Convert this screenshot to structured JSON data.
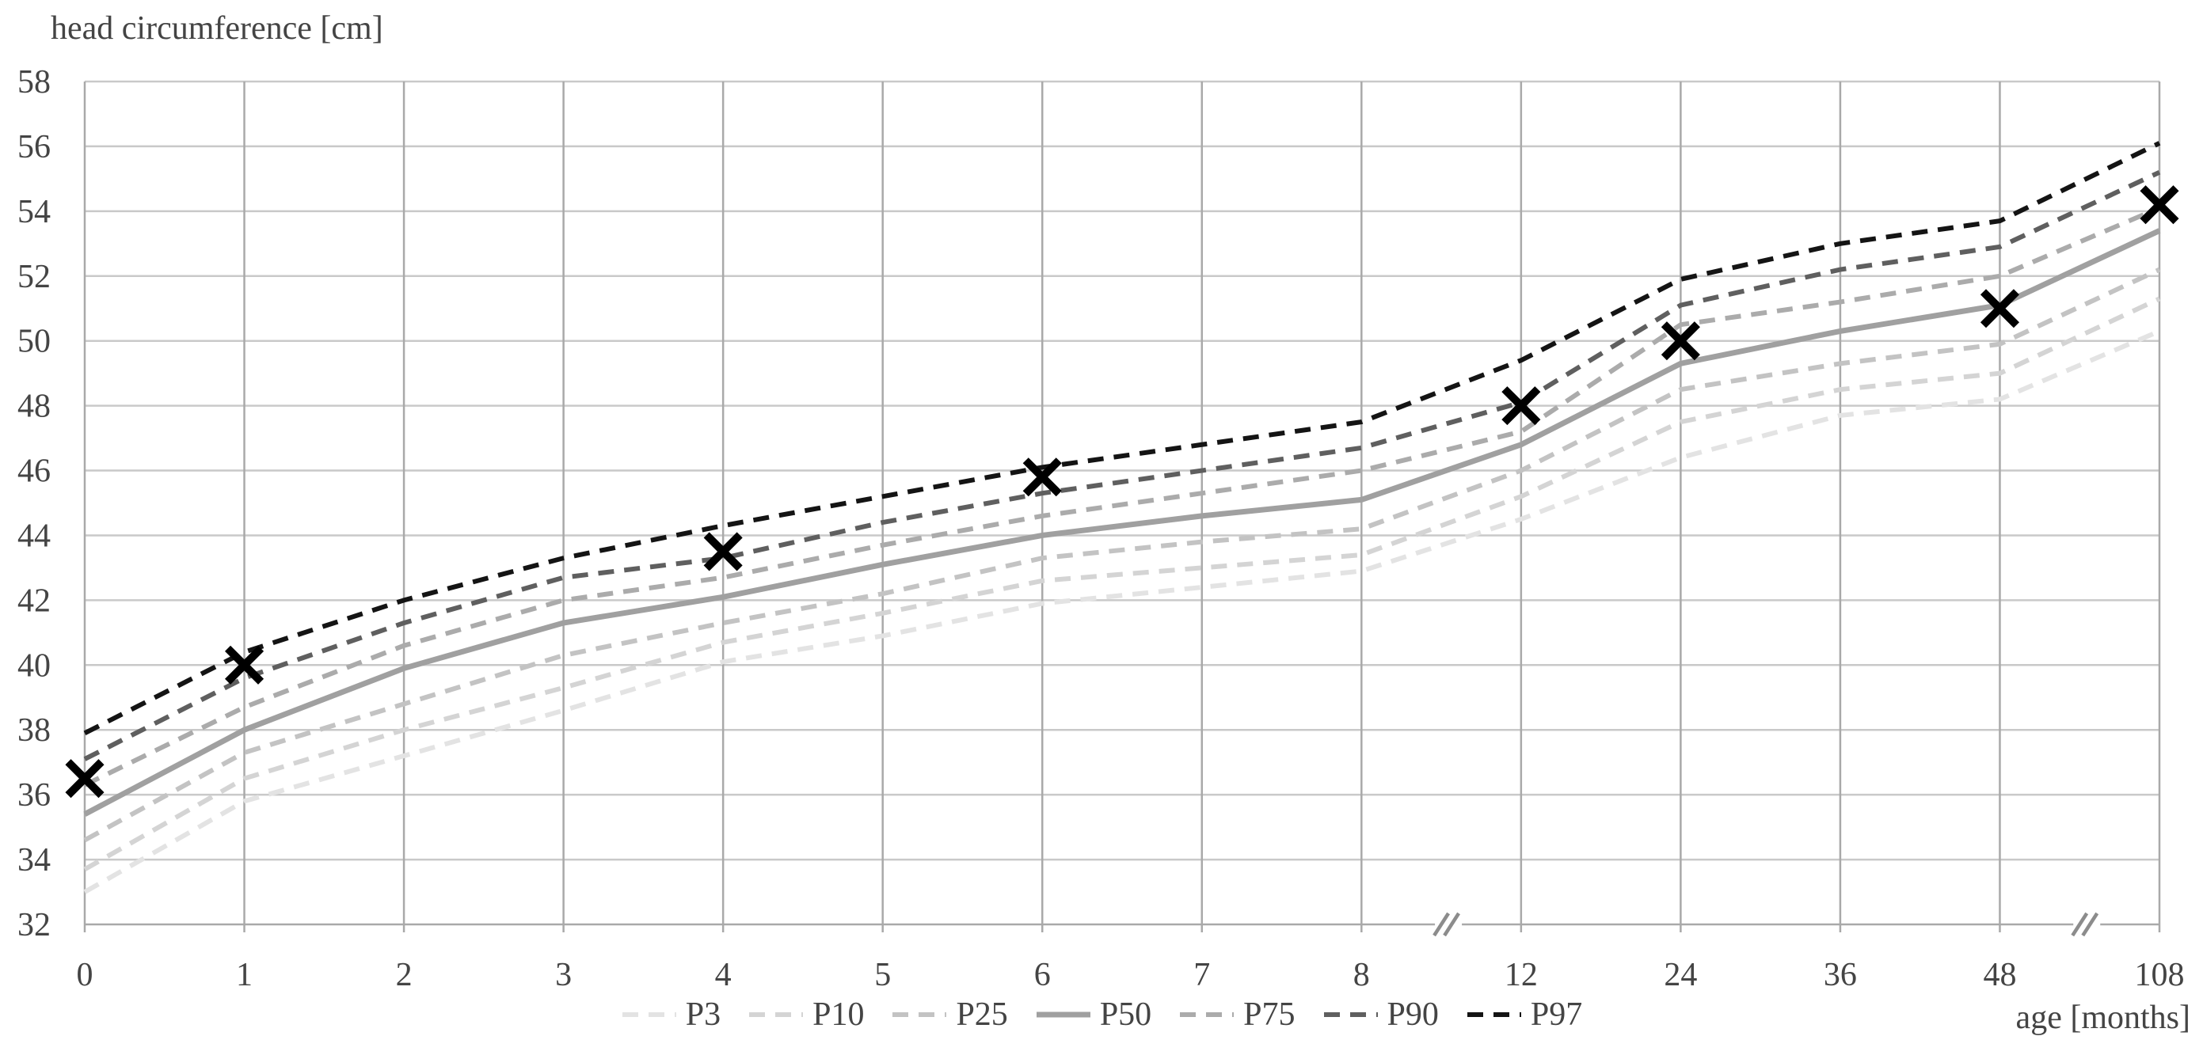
{
  "title": "head circumference [cm]",
  "x_axis_label": "age [months]",
  "colors": {
    "background": "#ffffff",
    "grid_horizontal": "#c9c9c9",
    "grid_vertical": "#a9a9a9",
    "axis": "#a9a9a9",
    "text": "#444444",
    "axis_break": "#8c8c8c",
    "patient_marker": "#000000"
  },
  "chart_data": {
    "type": "line",
    "title": "head circumference [cm]",
    "xlabel": "age [months]",
    "ylabel": "head circumference [cm]",
    "ylim": [
      32,
      58
    ],
    "y_ticks": [
      32,
      34,
      36,
      38,
      40,
      42,
      44,
      46,
      48,
      50,
      52,
      54,
      56,
      58
    ],
    "grid": true,
    "legend_position": "bottom-center",
    "x_axis_breaks_between_ticks": [
      [
        "8",
        "12"
      ],
      [
        "48",
        "108"
      ]
    ],
    "categories": [
      0,
      1,
      2,
      3,
      4,
      5,
      6,
      7,
      8,
      12,
      24,
      36,
      48,
      108
    ],
    "x_tick_labels": [
      "0",
      "1",
      "2",
      "3",
      "4",
      "5",
      "6",
      "7",
      "8",
      "12",
      "24",
      "36",
      "48",
      "108"
    ],
    "series": [
      {
        "name": "P3",
        "style": "dashed",
        "color": "#e3e3e3",
        "width": 6,
        "values": [
          33.0,
          35.8,
          37.2,
          38.6,
          40.1,
          40.9,
          41.9,
          42.4,
          42.9,
          44.5,
          46.4,
          47.7,
          48.2,
          50.3
        ]
      },
      {
        "name": "P10",
        "style": "dashed",
        "color": "#d4d4d4",
        "width": 6,
        "values": [
          33.7,
          36.5,
          38.0,
          39.3,
          40.7,
          41.6,
          42.6,
          43.0,
          43.4,
          45.2,
          47.5,
          48.5,
          49.0,
          51.3
        ]
      },
      {
        "name": "P25",
        "style": "dashed",
        "color": "#c3c3c3",
        "width": 6,
        "values": [
          34.6,
          37.3,
          38.8,
          40.3,
          41.3,
          42.2,
          43.3,
          43.8,
          44.2,
          46.0,
          48.5,
          49.3,
          49.9,
          52.2
        ]
      },
      {
        "name": "P50",
        "style": "solid",
        "color": "#a0a0a0",
        "width": 7,
        "values": [
          35.4,
          38.0,
          39.9,
          41.3,
          42.1,
          43.1,
          44.0,
          44.6,
          45.1,
          46.8,
          49.3,
          50.3,
          51.1,
          53.4
        ]
      },
      {
        "name": "P75",
        "style": "dashed",
        "color": "#ababab",
        "width": 6,
        "values": [
          36.3,
          38.7,
          40.6,
          42.0,
          42.7,
          43.7,
          44.6,
          45.3,
          46.0,
          47.2,
          50.5,
          51.2,
          52.0,
          54.1
        ]
      },
      {
        "name": "P90",
        "style": "dashed",
        "color": "#5f5f5f",
        "width": 6,
        "values": [
          37.1,
          39.6,
          41.3,
          42.7,
          43.3,
          44.4,
          45.3,
          46.0,
          46.7,
          48.1,
          51.1,
          52.2,
          52.9,
          55.2
        ]
      },
      {
        "name": "P97",
        "style": "dashed",
        "color": "#141414",
        "width": 6,
        "values": [
          37.9,
          40.4,
          42.0,
          43.3,
          44.3,
          45.2,
          46.1,
          46.8,
          47.5,
          49.4,
          51.9,
          53.0,
          53.7,
          56.1
        ]
      }
    ],
    "markers": {
      "name": "patient-measurements",
      "symbol": "x",
      "color": "#000000",
      "values": [
        36.5,
        40.0,
        null,
        null,
        43.5,
        null,
        45.8,
        null,
        null,
        48.0,
        50.0,
        null,
        51.0,
        54.2
      ]
    },
    "legend_entries": [
      "P3",
      "P10",
      "P25",
      "P50",
      "P75",
      "P90",
      "P97"
    ]
  }
}
